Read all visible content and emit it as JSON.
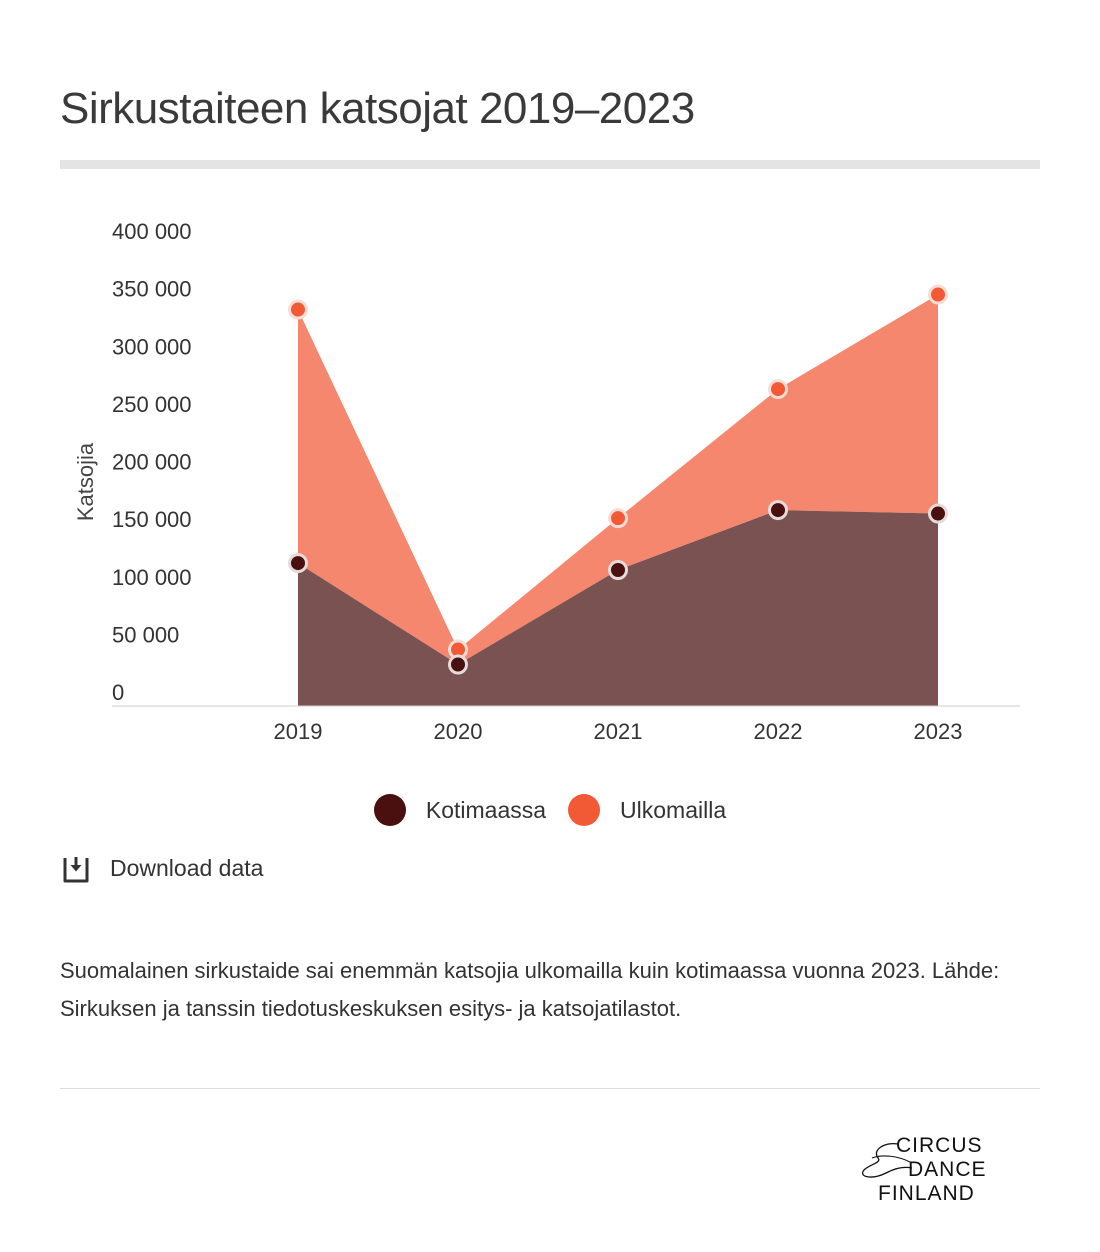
{
  "title": "Sirkustaiteen katsojat 2019–2023",
  "download_label": "Download data",
  "caption": "Suomalainen sirkustaide sai enemmän katsojia ulkomailla kuin kotimaassa vuonna 2023. Lähde: Sirkuksen ja tanssin tiedotuskeskuksen esitys- ja katsojatilastot.",
  "logo": {
    "line1": "CIRCUS",
    "line2": "DANCE",
    "line3": "FINLAND"
  },
  "icons": {
    "download": "download-icon",
    "logo": "circus-dance-finland-logo"
  },
  "chart_data": {
    "type": "area",
    "stacked": true,
    "title": "",
    "xlabel": "",
    "ylabel": "Katsojia",
    "categories": [
      "2019",
      "2020",
      "2021",
      "2022",
      "2023"
    ],
    "y_ticks": [
      0,
      50000,
      100000,
      150000,
      200000,
      250000,
      300000,
      350000,
      400000
    ],
    "y_tick_labels": [
      "0",
      "50 000",
      "100 000",
      "150 000",
      "200 000",
      "250 000",
      "300 000",
      "350 000",
      "400 000"
    ],
    "ylim": [
      0,
      410000
    ],
    "grid": false,
    "legend_position": "bottom",
    "series": [
      {
        "name": "Kotimaassa",
        "values": [
          124000,
          36000,
          118000,
          170000,
          167000
        ],
        "fill": "#7b5252",
        "dot": "#4a0f0f"
      },
      {
        "name": "Ulkomailla",
        "values": [
          220000,
          13000,
          45000,
          105000,
          190000
        ],
        "fill": "#f4876d",
        "dot": "#f25a35"
      }
    ]
  }
}
